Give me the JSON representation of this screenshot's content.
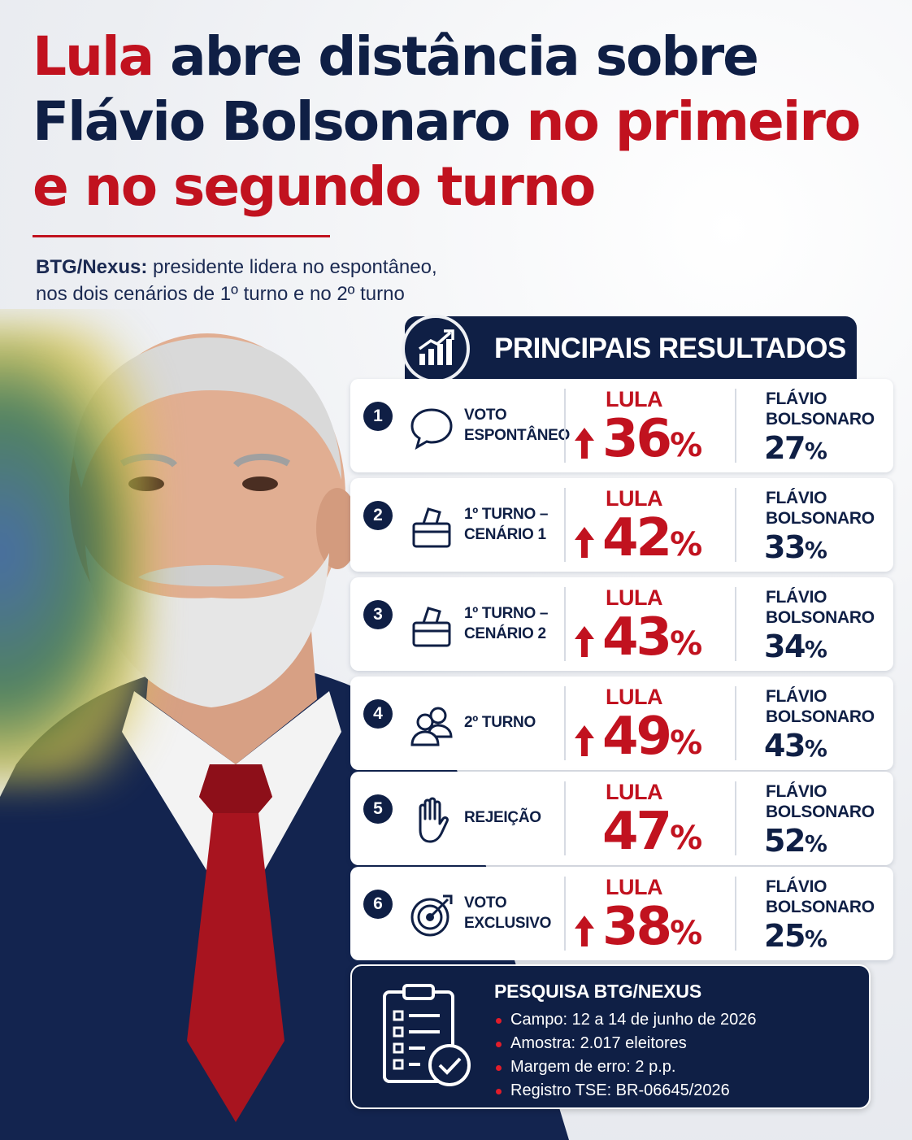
{
  "headline": {
    "line1": {
      "red": "Lula",
      "navy": " abre distância sobre"
    },
    "line2": {
      "navy": "Flávio Bolsonaro",
      "red": " no primeiro"
    },
    "line3": {
      "red": "e no segundo turno"
    }
  },
  "subtitle": {
    "bold": "BTG/Nexus:",
    "rest": " presidente lidera no espontâneo,",
    "line2": "nos dois cenários de 1º turno e no 2º turno"
  },
  "results": {
    "title": "PRINCIPAIS RESULTADOS",
    "title_icon": "chart-trend-icon",
    "candidate_a": "LULA",
    "candidate_b_line1": "FLÁVIO",
    "candidate_b_line2": "BOLSONARO",
    "percent": "%",
    "rows": [
      {
        "num": "1",
        "icon": "speech-bubble-icon",
        "label1": "VOTO",
        "label2": "ESPONTÂNEO",
        "lula": "36",
        "flavio": "27",
        "lula_up": true
      },
      {
        "num": "2",
        "icon": "ballot-box-icon",
        "label1": "1º TURNO –",
        "label2": "CENÁRIO 1",
        "lula": "42",
        "flavio": "33",
        "lula_up": true
      },
      {
        "num": "3",
        "icon": "ballot-box-icon",
        "label1": "1º TURNO –",
        "label2": "CENÁRIO 2",
        "lula": "43",
        "flavio": "34",
        "lula_up": true
      },
      {
        "num": "4",
        "icon": "people-icon",
        "label1": "2º TURNO",
        "label2": "",
        "lula": "49",
        "flavio": "43",
        "lula_up": true
      },
      {
        "num": "5",
        "icon": "hand-icon",
        "label1": "REJEIÇÃO",
        "label2": "",
        "lula": "47",
        "flavio": "52",
        "lula_up": false
      },
      {
        "num": "6",
        "icon": "target-icon",
        "label1": "VOTO",
        "label2": "EXCLUSIVO",
        "lula": "38",
        "flavio": "25",
        "lula_up": true
      }
    ]
  },
  "survey": {
    "title": "PESQUISA BTG/NEXUS",
    "items": [
      "Campo: 12 a 14 de junho de 2026",
      "Amostra: 2.017 eleitores",
      "Margem de erro: 2 p.p.",
      "Registro TSE: BR-06645/2026"
    ],
    "icon": "clipboard-check-icon"
  },
  "colors": {
    "red": "#c1121f",
    "navy": "#0f1f45",
    "background": "#eef0f4"
  }
}
